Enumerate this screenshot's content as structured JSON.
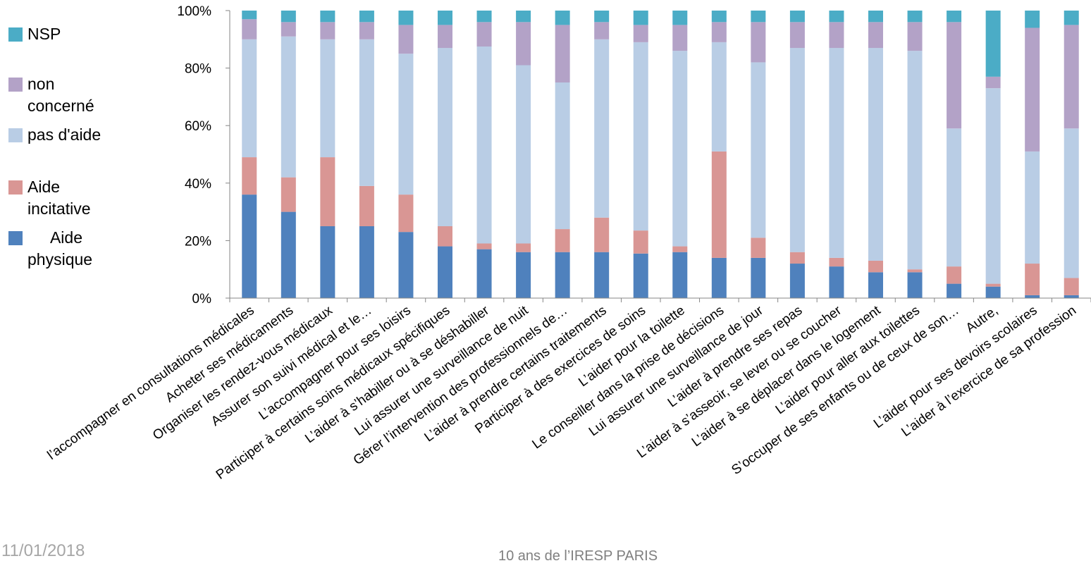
{
  "chart_data": {
    "type": "bar",
    "stacked": true,
    "percent": true,
    "ylim": [
      0,
      100
    ],
    "yticks": [
      "0%",
      "20%",
      "40%",
      "60%",
      "80%",
      "100%"
    ],
    "grid": false,
    "legend_position": "left",
    "categories": [
      "l’accompagner en consultations médicales",
      "Acheter  ses médicaments",
      "Organiser les rendez-vous médicaux",
      "Assurer son suivi médical et le…",
      "L’accompagner pour ses loisirs",
      "Participer  à certains soins médicaux spécifiques",
      "L’aider à s’habiller ou à se déshabiller",
      "Lui assurer une surveillance de nuit",
      "Gérer l’intervention  des professionnels de…",
      "L’aider à prendre  certains traitements",
      "Participer  à des exercices de soins",
      "L’aider pour la toilette",
      "Le conseiller dans la prise de décisions",
      "Lui assurer une surveillance de jour",
      "L’aider à prendre  ses repas",
      "L’aider à s’asseoir, se lever ou se coucher",
      "L’aider à se déplacer dans le logement",
      "L’aider pour aller aux toilettes",
      "S’occuper de ses enfants ou de ceux de son…",
      "Autre,",
      "L’aider pour ses devoirs scolaires",
      "L’aider à l’exercice  de sa profession"
    ],
    "series": [
      {
        "name": "Aide physique",
        "color": "#4f81bd",
        "values": [
          36,
          30,
          25,
          25,
          23,
          18,
          17,
          16,
          16,
          16,
          15.5,
          16,
          14,
          14,
          12,
          11,
          9,
          9,
          5,
          4,
          1,
          1
        ]
      },
      {
        "name": "Aide incitative",
        "color": "#d99694",
        "values": [
          13,
          12,
          24,
          14,
          13,
          7,
          2,
          3,
          8,
          12,
          8,
          2,
          37,
          7,
          4,
          3,
          4,
          1,
          6,
          1,
          11,
          6
        ]
      },
      {
        "name": "pas d'aide",
        "color": "#b9cde5",
        "values": [
          41,
          49,
          41,
          51,
          49,
          62,
          68.5,
          62,
          51,
          62,
          65.5,
          68,
          38,
          61,
          71,
          73,
          74,
          76,
          48,
          68,
          39,
          52
        ]
      },
      {
        "name": "non concerné",
        "color": "#b3a2c7",
        "values": [
          7,
          5,
          6,
          6,
          10,
          8,
          8.5,
          15,
          20,
          6,
          6,
          9,
          7,
          14,
          9,
          9,
          9,
          10,
          37,
          4,
          43,
          36
        ]
      },
      {
        "name": "NSP",
        "color": "#4bacc6",
        "values": [
          3,
          4,
          4,
          4,
          5,
          5,
          4,
          4,
          5,
          4,
          5,
          5,
          4,
          4,
          4,
          4,
          4,
          4,
          4,
          23,
          6,
          5
        ]
      }
    ]
  },
  "legend": {
    "nsp": "NSP",
    "non_concerne": "non concerné",
    "pas_aide": "pas d'aide",
    "aide_incitative": "Aide incitative",
    "aide_physique": "     Aide physique"
  },
  "footer": {
    "date": "11/01/2018",
    "title": "10 ans de l’IRESP PARIS"
  }
}
